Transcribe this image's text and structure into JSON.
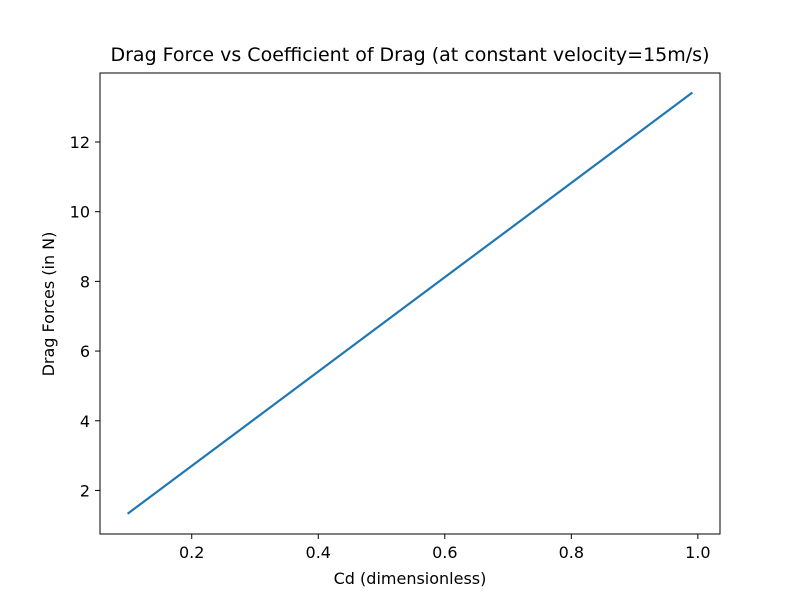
{
  "chart_data": {
    "type": "line",
    "title": "Drag Force vs Coefficient of Drag (at constant velocity=15m/s)",
    "xlabel": "Cd (dimensionless)",
    "ylabel": "Drag Forces (in N)",
    "xlim": [
      0.055,
      1.035
    ],
    "ylim": [
      0.75,
      13.98
    ],
    "xticks": [
      0.2,
      0.4,
      0.6,
      0.8,
      1.0
    ],
    "xtick_labels": [
      "0.2",
      "0.4",
      "0.6",
      "0.8",
      "1.0"
    ],
    "yticks": [
      2,
      4,
      6,
      8,
      10,
      12
    ],
    "ytick_labels": [
      "2",
      "4",
      "6",
      "8",
      "10",
      "12"
    ],
    "grid": false,
    "series": [
      {
        "x": [
          0.1,
          0.99
        ],
        "y": [
          1.35,
          13.4
        ],
        "color": "#1f77b4"
      }
    ]
  }
}
